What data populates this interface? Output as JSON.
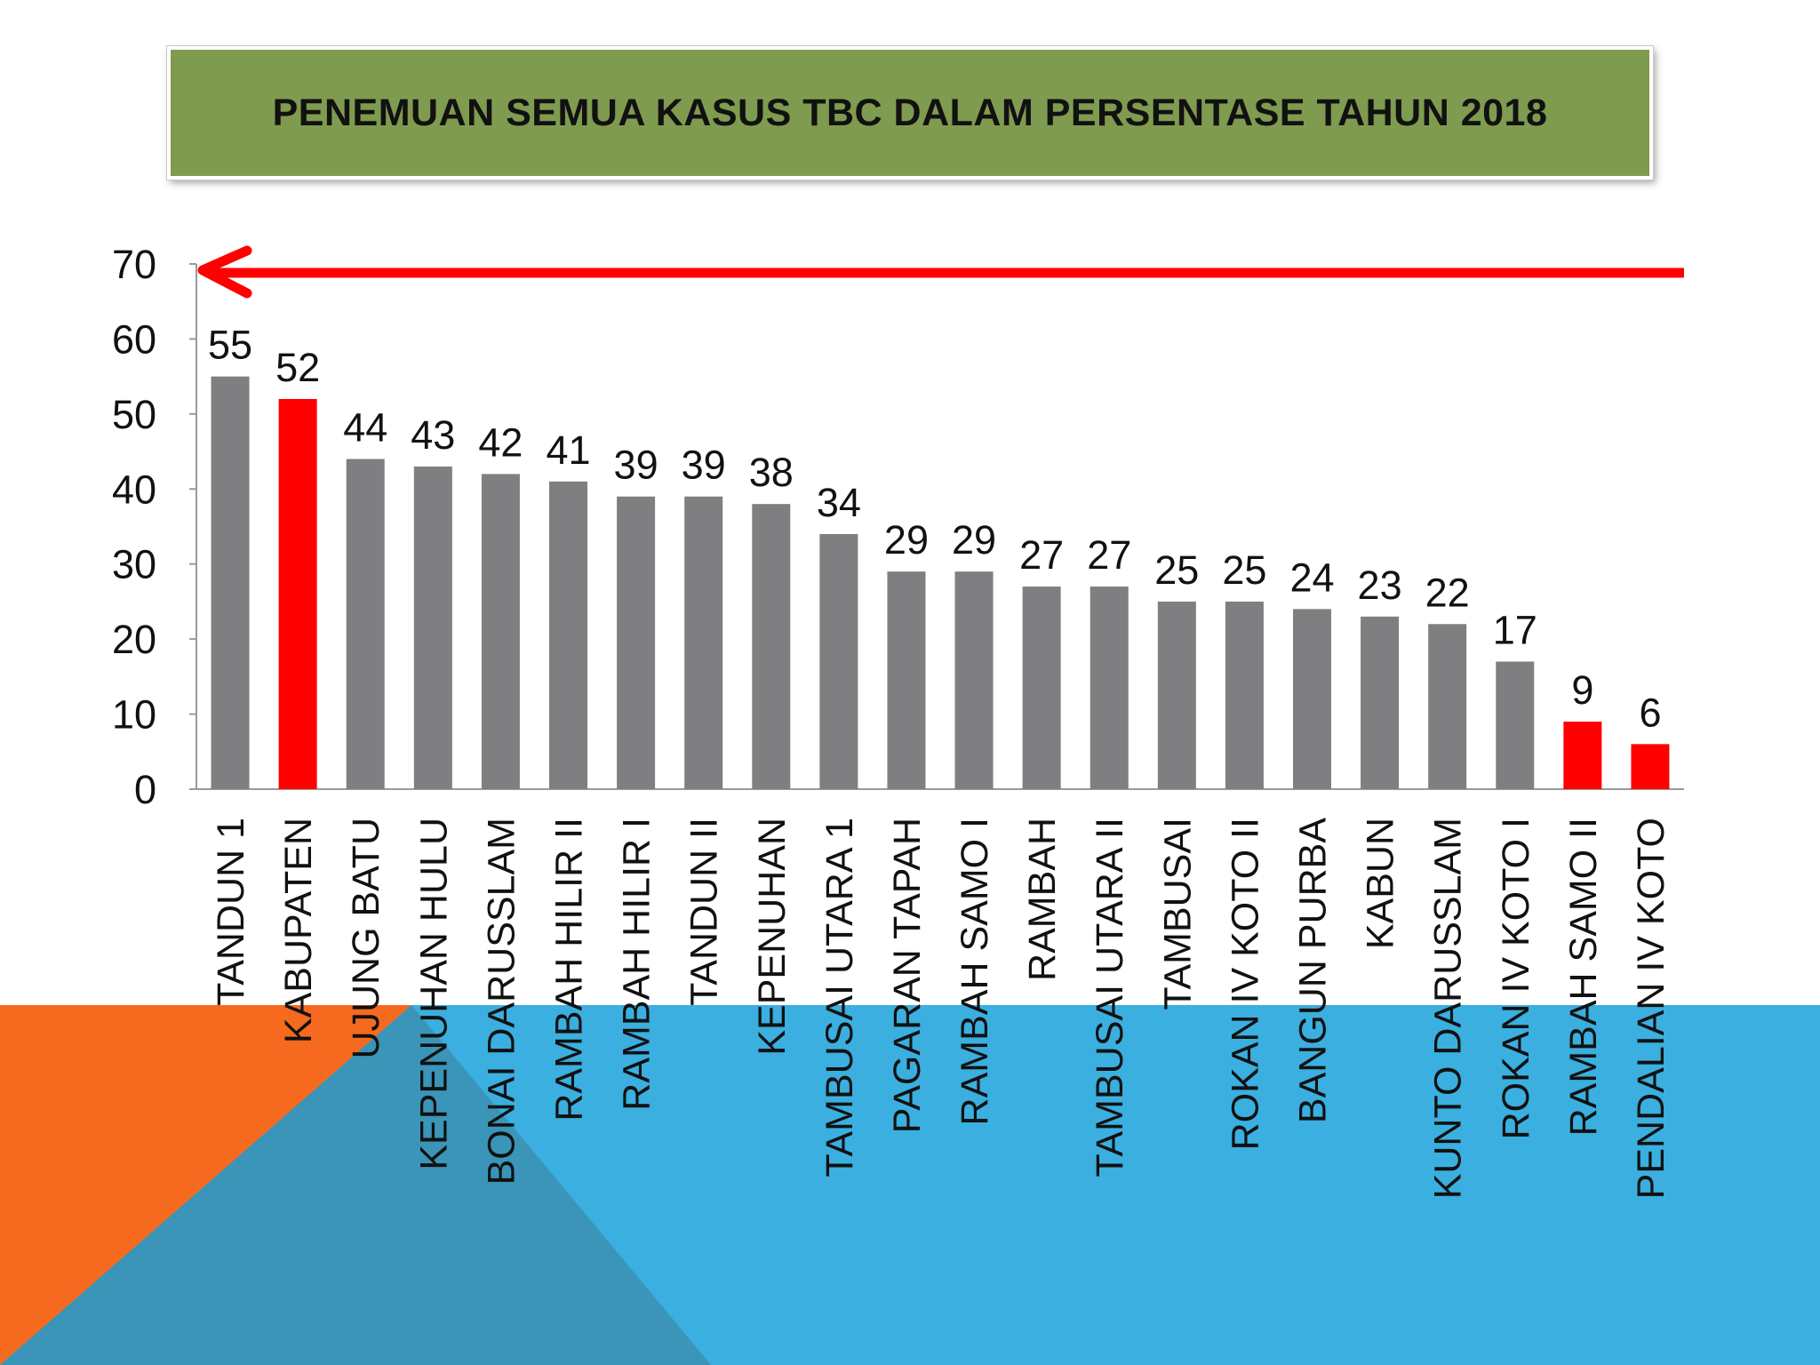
{
  "title": "PENEMUAN SEMUA KASUS TBC DALAM PERSENTASE TAHUN 2018",
  "colors": {
    "bar_default": "#7f7f81",
    "bar_highlight": "#ff0000",
    "arrow": "#ff0000",
    "title_bg": "#7f9b4f",
    "bg_orange": "#f56a1e",
    "bg_blue": "#3aafe0",
    "bg_overlap": "#3a95b8"
  },
  "chart_data": {
    "type": "bar",
    "title": "PENEMUAN SEMUA KASUS TBC DALAM PERSENTASE TAHUN 2018",
    "xlabel": "",
    "ylabel": "",
    "ylim": [
      0,
      70
    ],
    "yticks": [
      0,
      10,
      20,
      30,
      40,
      50,
      60,
      70
    ],
    "grid": false,
    "legend": "none",
    "categories": [
      "TANDUN 1",
      "KABUPATEN",
      "UJUNG BATU",
      "KEPENUHAN HULU",
      "BONAI DARUSSLAM",
      "RAMBAH HILIR II",
      "RAMBAH HILIR I",
      "TANDUN II",
      "KEPENUHAN",
      "TAMBUSAI UTARA 1",
      "PAGARAN TAPAH",
      "RAMBAH SAMO I",
      "RAMBAH",
      "TAMBUSAI UTARA II",
      "TAMBUSAI",
      "ROKAN IV KOTO II",
      "BANGUN PURBA",
      "KABUN",
      "KUNTO DARUSSLAM",
      "ROKAN IV KOTO I",
      "RAMBAH SAMO II",
      "PENDALIAN IV KOTO"
    ],
    "values": [
      55,
      52,
      44,
      43,
      42,
      41,
      39,
      39,
      38,
      34,
      29,
      29,
      27,
      27,
      25,
      25,
      24,
      23,
      22,
      17,
      9,
      6
    ],
    "highlighted": [
      "KABUPATEN",
      "RAMBAH SAMO II",
      "PENDALIAN IV KOTO"
    ],
    "annotation": "red arrow along the 70 line pointing left"
  }
}
